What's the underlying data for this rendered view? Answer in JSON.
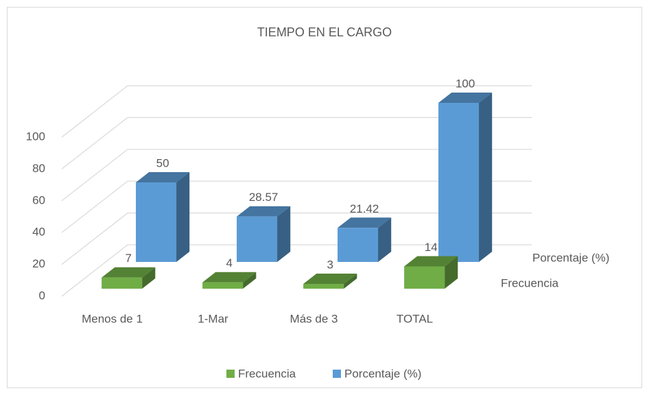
{
  "chart_data": {
    "type": "bar",
    "title": "TIEMPO EN EL CARGO",
    "categories": [
      "Menos de 1",
      "1-Mar",
      "Más de 3",
      "TOTAL"
    ],
    "series": [
      {
        "name": "Frecuencia",
        "color": "#70ad47",
        "values": [
          7,
          4,
          3,
          14
        ]
      },
      {
        "name": "Porcentaje (%)",
        "color": "#5b9bd5",
        "values": [
          50,
          28.57,
          21.42,
          100
        ]
      }
    ],
    "ylim": [
      0,
      100
    ],
    "yticks": [
      0,
      20,
      40,
      60,
      80,
      100
    ],
    "grid": true,
    "legend": "bottom"
  }
}
